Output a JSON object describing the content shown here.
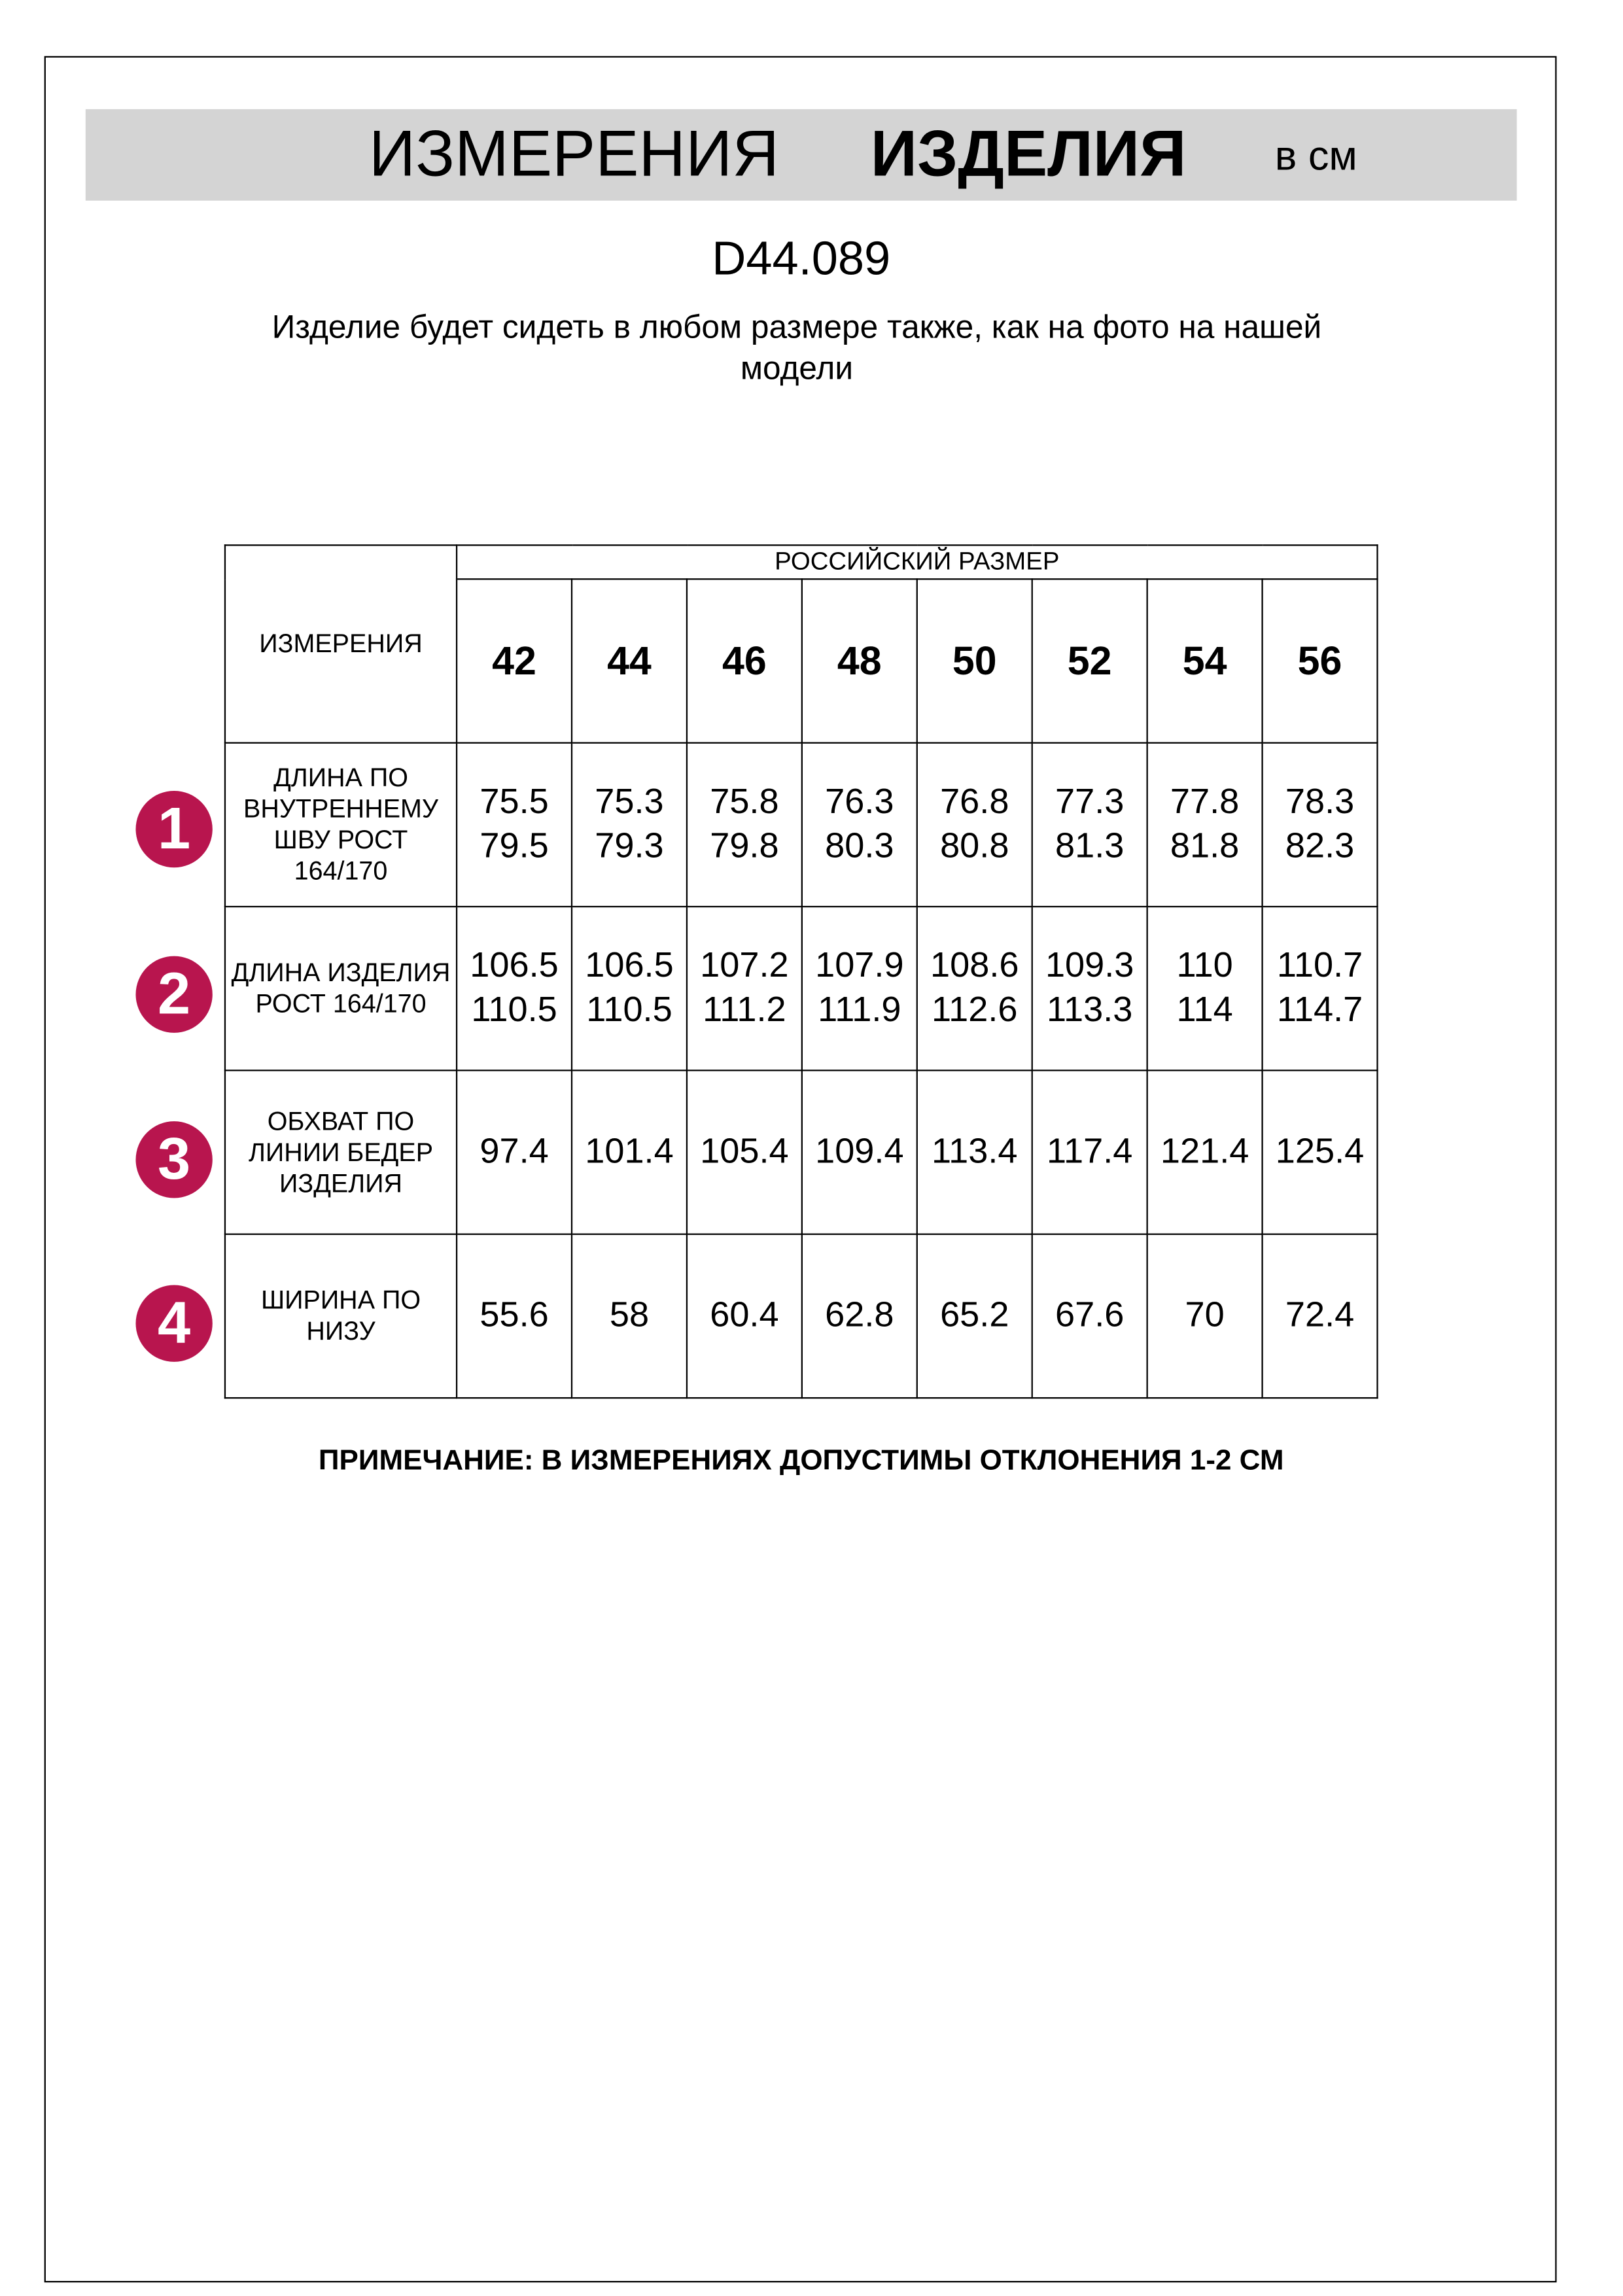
{
  "header": {
    "title_part1": "ИЗМЕРЕНИЯ",
    "title_part2": "ИЗДЕЛИЯ",
    "unit": "в см",
    "band_color": "#d4d4d4"
  },
  "product_code": "D44.089",
  "subtitle": "Изделие будет сидеть в любом размере также, как на фото на нашей модели",
  "table": {
    "corner_label": "ИЗМЕРЕНИЯ",
    "group_header": "РОССИЙСКИЙ РАЗМЕР",
    "sizes": [
      "42",
      "44",
      "46",
      "48",
      "50",
      "52",
      "54",
      "56"
    ],
    "badge_color": "#b8154e",
    "rows": [
      {
        "num": "1",
        "label": "ДЛИНА ПО ВНУТРЕННЕМУ ШВУ РОСТ 164/170",
        "values": [
          "75.5\n79.5",
          "75.3\n79.3",
          "75.8\n79.8",
          "76.3\n80.3",
          "76.8\n80.8",
          "77.3\n81.3",
          "77.8\n81.8",
          "78.3\n82.3"
        ]
      },
      {
        "num": "2",
        "label": "ДЛИНА ИЗДЕЛИЯ РОСТ 164/170",
        "values": [
          "106.5\n110.5",
          "106.5\n110.5",
          "107.2\n111.2",
          "107.9\n111.9",
          "108.6\n112.6",
          "109.3\n113.3",
          "110\n114",
          "110.7\n114.7"
        ]
      },
      {
        "num": "3",
        "label": "ОБХВАТ ПО ЛИНИИ БЕДЕР ИЗДЕЛИЯ",
        "values": [
          "97.4",
          "101.4",
          "105.4",
          "109.4",
          "113.4",
          "117.4",
          "121.4",
          "125.4"
        ]
      },
      {
        "num": "4",
        "label": "ШИРИНА ПО НИЗУ",
        "values": [
          "55.6",
          "58",
          "60.4",
          "62.8",
          "65.2",
          "67.6",
          "70",
          "72.4"
        ]
      }
    ]
  },
  "note": "ПРИМЕЧАНИЕ: В ИЗМЕРЕНИЯХ ДОПУСТИМЫ ОТКЛОНЕНИЯ 1-2 СМ"
}
